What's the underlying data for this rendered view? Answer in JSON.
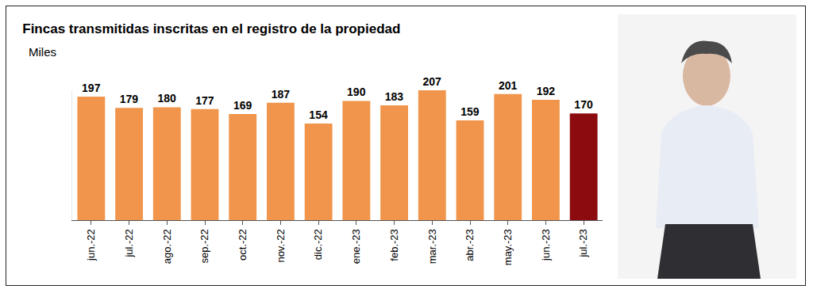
{
  "chart_data": {
    "type": "bar",
    "title": "Fincas transmitidas inscritas en el registro de la propiedad",
    "subtitle": "Miles",
    "categories": [
      "jun.-22",
      "jul.-22",
      "ago.-22",
      "sep.-22",
      "oct.-22",
      "nov.-22",
      "dic.-22",
      "ene.-23",
      "feb.-23",
      "mar.-23",
      "abr.-23",
      "may.-23",
      "jun.-23",
      "jul.-23"
    ],
    "values": [
      197,
      179,
      180,
      177,
      169,
      187,
      154,
      190,
      183,
      207,
      159,
      201,
      192,
      170
    ],
    "colors": [
      "#f0954b",
      "#f0954b",
      "#f0954b",
      "#f0954b",
      "#f0954b",
      "#f0954b",
      "#f0954b",
      "#f0954b",
      "#f0954b",
      "#f0954b",
      "#f0954b",
      "#f0954b",
      "#f0954b",
      "#8b0b0f"
    ],
    "ylim": [
      0,
      207
    ],
    "yticks": [],
    "grid": false,
    "data_labels": true,
    "tick_labels": "x"
  }
}
